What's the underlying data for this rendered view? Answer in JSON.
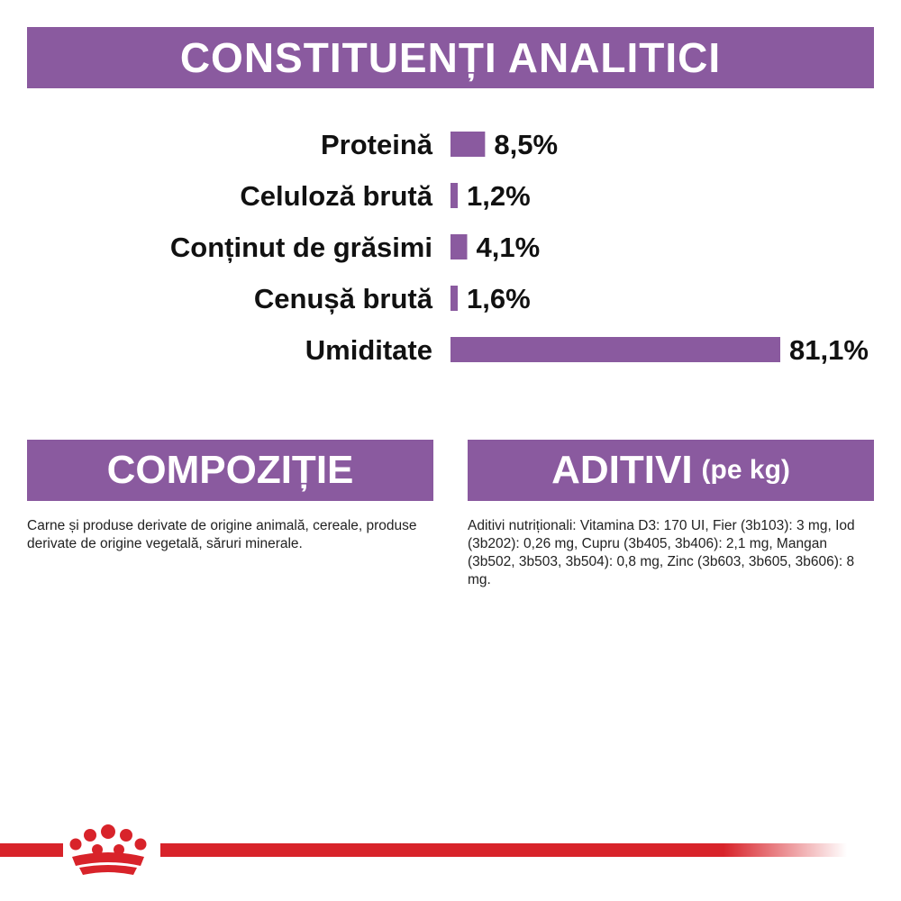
{
  "header": {
    "title": "CONSTITUENȚI ANALITICI"
  },
  "chart_data": {
    "type": "bar",
    "orientation": "horizontal",
    "categories": [
      "Proteină",
      "Celuloză brută",
      "Conținut de grăsimi",
      "Cenușă brută",
      "Umiditate"
    ],
    "values": [
      8.5,
      1.2,
      4.1,
      1.6,
      81.1
    ],
    "value_labels": [
      "8,5%",
      "1,2%",
      "4,1%",
      "1,6%",
      "81,1%"
    ],
    "unit": "%",
    "xlim": [
      0,
      81.1
    ],
    "grid": false,
    "bar_color": "#8a5a9f"
  },
  "composition": {
    "title": "COMPOZIȚIE",
    "text": "Carne și produse derivate de origine animală, cereale, produse derivate de origine vegetală, săruri minerale."
  },
  "additives": {
    "title": "ADITIVI",
    "subtitle": "(pe kg)",
    "text": "Aditivi nutriționali: Vitamina D3: 170 UI, Fier (3b103): 3 mg, Iod (3b202): 0,26 mg, Cupru (3b405, 3b406): 2,1 mg, Mangan (3b502, 3b503, 3b504): 0,8 mg, Zinc (3b603, 3b605, 3b606): 8 mg."
  },
  "colors": {
    "accent": "#8a5a9f",
    "footer_line": "#d8232a",
    "crown": "#d8232a"
  },
  "footer": {
    "logo_icon": "royal-canin-crown-icon"
  }
}
